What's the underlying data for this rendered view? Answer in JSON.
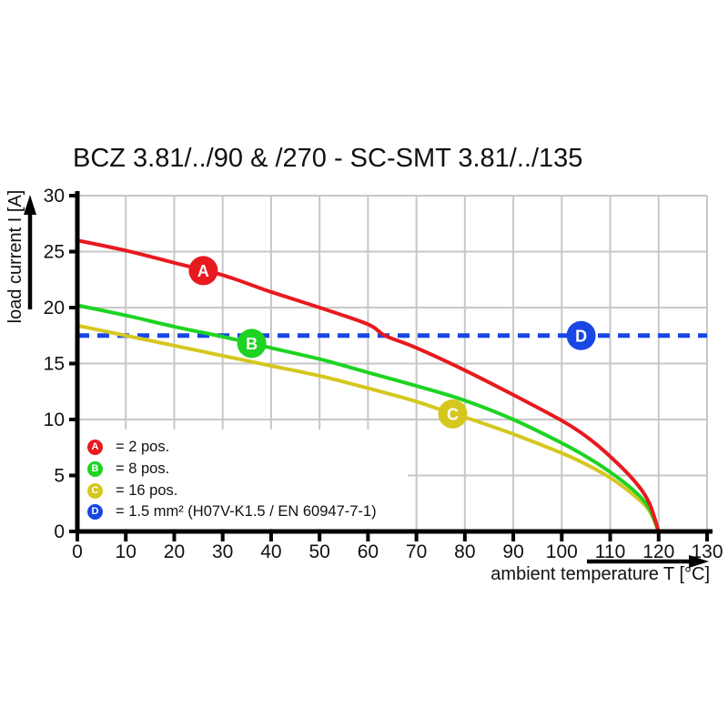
{
  "title": "BCZ 3.81/../90 & /270 - SC-SMT 3.81/../135",
  "x_axis": {
    "label": "ambient temperature T [°C]",
    "ticks": [
      0,
      10,
      20,
      30,
      40,
      50,
      60,
      70,
      80,
      90,
      100,
      110,
      120,
      130
    ],
    "min": 0,
    "max": 130
  },
  "y_axis": {
    "label": "load current I [A]",
    "ticks": [
      0,
      5,
      10,
      15,
      20,
      25,
      30
    ],
    "min": 0,
    "max": 30
  },
  "legend": [
    {
      "id": "A",
      "color": "#e8191f",
      "label": "= 2 pos."
    },
    {
      "id": "B",
      "color": "#1ed322",
      "label": "= 8 pos."
    },
    {
      "id": "C",
      "color": "#d5c71e",
      "label": "= 16 pos."
    },
    {
      "id": "D",
      "color": "#1847e6",
      "label": "= 1.5 mm² (H07V-K1.5 / EN 60947-7-1)"
    }
  ],
  "chart_data": {
    "type": "line",
    "title": "BCZ 3.81/../90 & /270 - SC-SMT 3.81/../135",
    "xlabel": "ambient temperature T [°C]",
    "ylabel": "load current I [A]",
    "xlim": [
      0,
      130
    ],
    "ylim": [
      0,
      30
    ],
    "grid": true,
    "legend_position": "bottom-left-inside",
    "series": [
      {
        "name": "A = 2 pos.",
        "color": "#e8191f",
        "style": "solid",
        "points": [
          [
            0,
            26.0
          ],
          [
            10,
            25.1
          ],
          [
            20,
            24.0
          ],
          [
            30,
            22.9
          ],
          [
            40,
            21.4
          ],
          [
            50,
            20.0
          ],
          [
            60,
            18.5
          ],
          [
            63.5,
            17.5
          ],
          [
            70,
            16.4
          ],
          [
            80,
            14.4
          ],
          [
            90,
            12.2
          ],
          [
            100,
            9.9
          ],
          [
            105,
            8.5
          ],
          [
            110,
            6.7
          ],
          [
            115,
            4.5
          ],
          [
            118,
            2.6
          ],
          [
            120,
            0
          ]
        ]
      },
      {
        "name": "B = 8 pos.",
        "color": "#1ed322",
        "style": "solid",
        "points": [
          [
            0,
            20.2
          ],
          [
            10,
            19.3
          ],
          [
            20,
            18.3
          ],
          [
            30,
            17.4
          ],
          [
            36,
            16.8
          ],
          [
            40,
            16.4
          ],
          [
            50,
            15.4
          ],
          [
            60,
            14.2
          ],
          [
            70,
            13.0
          ],
          [
            80,
            11.7
          ],
          [
            90,
            10.0
          ],
          [
            100,
            7.9
          ],
          [
            105,
            6.7
          ],
          [
            110,
            5.3
          ],
          [
            115,
            3.6
          ],
          [
            118,
            2.1
          ],
          [
            120,
            0
          ]
        ]
      },
      {
        "name": "C = 16 pos.",
        "color": "#d5c71e",
        "style": "solid",
        "points": [
          [
            0,
            18.4
          ],
          [
            10,
            17.5
          ],
          [
            20,
            16.6
          ],
          [
            30,
            15.7
          ],
          [
            40,
            14.8
          ],
          [
            50,
            13.9
          ],
          [
            60,
            12.8
          ],
          [
            70,
            11.6
          ],
          [
            77.5,
            10.5
          ],
          [
            80,
            10.2
          ],
          [
            90,
            8.7
          ],
          [
            100,
            7.0
          ],
          [
            105,
            6.0
          ],
          [
            110,
            4.8
          ],
          [
            115,
            3.2
          ],
          [
            118,
            1.9
          ],
          [
            120,
            0
          ]
        ]
      },
      {
        "name": "D = 1.5 mm² (H07V-K1.5 / EN 60947-7-1)",
        "color": "#1847e6",
        "style": "dashed",
        "points": [
          [
            0,
            17.5
          ],
          [
            130,
            17.5
          ]
        ]
      }
    ],
    "markers": [
      {
        "id": "A",
        "T": 26,
        "I": 23.3,
        "color": "#e8191f"
      },
      {
        "id": "B",
        "T": 36,
        "I": 16.8,
        "color": "#1ed322"
      },
      {
        "id": "C",
        "T": 77.5,
        "I": 10.5,
        "color": "#d5c71e"
      },
      {
        "id": "D",
        "T": 104,
        "I": 17.5,
        "color": "#1847e6"
      }
    ]
  },
  "colors": {
    "grid": "#c7c7c7",
    "axis": "#000000",
    "background": "#ffffff",
    "marker_text": "#ffffff"
  }
}
